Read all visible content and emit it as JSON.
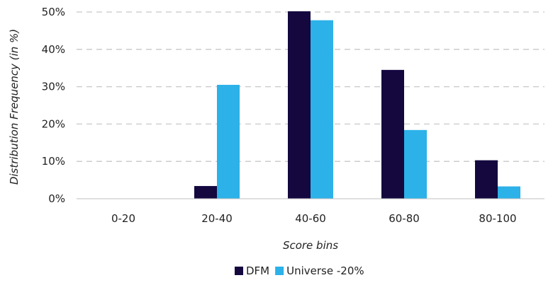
{
  "chart_data": {
    "type": "bar",
    "categories": [
      "0-20",
      "20-40",
      "40-60",
      "60-80",
      "80-100"
    ],
    "series": [
      {
        "name": "DFM",
        "values": [
          0,
          3.4,
          50.2,
          34.5,
          10.3
        ],
        "color": "#14083f"
      },
      {
        "name": "Universe -20%",
        "values": [
          0,
          30.5,
          47.8,
          18.4,
          3.3
        ],
        "color": "#2cb1e8"
      }
    ],
    "yticks": [
      "0%",
      "10%",
      "20%",
      "30%",
      "40%",
      "50%"
    ],
    "ylim": [
      0,
      50
    ],
    "xlabel": "Score bins",
    "ylabel": "Distribution Frequency (in %)",
    "grid": true,
    "legend_position": "bottom"
  }
}
